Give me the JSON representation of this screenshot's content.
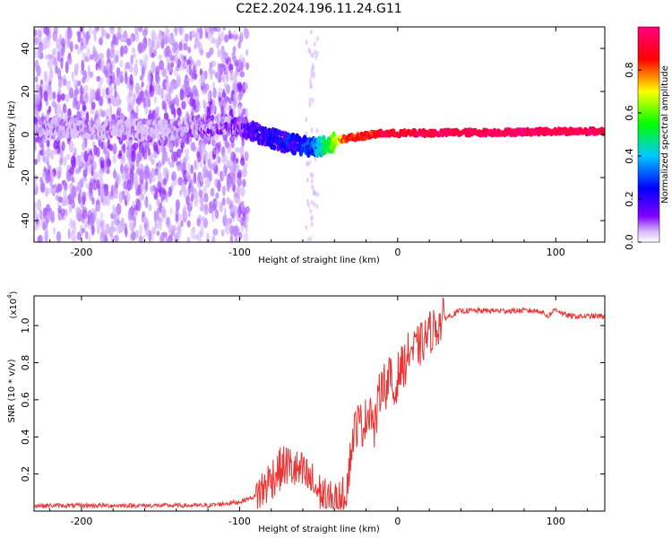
{
  "page": {
    "title": "C2E2.2024.196.11.24.G11"
  },
  "chart_data": [
    {
      "type": "heatmap",
      "title": "C2E2.2024.196.11.24.G11",
      "xlabel": "Height of straight line (km)",
      "ylabel": "Frequency (Hz)",
      "xlim": [
        -230,
        131
      ],
      "ylim": [
        -50,
        50
      ],
      "xticks": [
        -200,
        -100,
        0,
        100
      ],
      "yticks": [
        -40,
        -20,
        0,
        20,
        40
      ],
      "xtick_labels": [
        "-200",
        "-100",
        "0",
        "100"
      ],
      "ytick_labels": [
        "-40",
        "-20",
        "0",
        "20",
        "40"
      ],
      "colorbar": {
        "label": "Normalized spectral amplitude",
        "range": [
          0,
          1
        ],
        "ticks": [
          "0.0",
          "0.2",
          "0.4",
          "0.6",
          "0.8"
        ],
        "colors": [
          "#ffffff",
          "#8000ff",
          "#0000ff",
          "#00ffff",
          "#00ff00",
          "#ffff00",
          "#ff0000",
          "#ff0080"
        ]
      },
      "ridge": {
        "x": [
          -230,
          -200,
          -150,
          -110,
          -90,
          -70,
          -55,
          -45,
          -35,
          -25,
          -10,
          0,
          30,
          60,
          80,
          100,
          131
        ],
        "freq": [
          4,
          3,
          2,
          5,
          1,
          -4,
          -6,
          -5,
          -2,
          -1,
          0.5,
          0.5,
          0.8,
          1,
          1.2,
          1.5,
          1.5
        ],
        "amplitude": [
          0.05,
          0.05,
          0.05,
          0.1,
          0.2,
          0.25,
          0.3,
          0.5,
          0.8,
          0.85,
          0.9,
          0.9,
          0.95,
          0.95,
          0.98,
          0.95,
          0.95
        ]
      }
    },
    {
      "type": "line",
      "xlabel": "Height of straight line (km)",
      "ylabel": "SNR (10 * v/v)",
      "y_multiplier": "(x10",
      "y_multiplier_exp": "4",
      "xlim": [
        -230,
        131
      ],
      "ylim": [
        0,
        1.16
      ],
      "xticks": [
        -200,
        -100,
        0,
        100
      ],
      "yticks": [
        0.2,
        0.4,
        0.6,
        0.8,
        1.0
      ],
      "xtick_labels": [
        "-200",
        "-100",
        "0",
        "100"
      ],
      "ytick_labels": [
        "0.2",
        "0.4",
        "0.6",
        "0.8",
        "1.0"
      ],
      "series": [
        {
          "color": "#ee3333",
          "x": [
            -230,
            -200,
            -150,
            -120,
            -100,
            -90,
            -85,
            -80,
            -75,
            -70,
            -65,
            -60,
            -55,
            -50,
            -45,
            -40,
            -35,
            -32,
            -30,
            -28,
            -25,
            -22,
            -20,
            -17,
            -15,
            -12,
            -10,
            -7,
            -5,
            -2,
            0,
            3,
            5,
            8,
            10,
            15,
            20,
            25,
            30,
            35,
            40,
            50,
            60,
            70,
            80,
            90,
            95,
            100,
            105,
            110,
            120,
            131
          ],
          "y": [
            0.03,
            0.03,
            0.03,
            0.03,
            0.05,
            0.08,
            0.12,
            0.18,
            0.22,
            0.25,
            0.22,
            0.2,
            0.16,
            0.1,
            0.05,
            0.04,
            0.06,
            0.15,
            0.28,
            0.42,
            0.48,
            0.46,
            0.5,
            0.58,
            0.42,
            0.6,
            0.72,
            0.66,
            0.74,
            0.6,
            0.74,
            0.78,
            0.8,
            0.88,
            0.86,
            0.9,
            0.96,
            1.0,
            1.04,
            1.06,
            1.08,
            1.08,
            1.08,
            1.08,
            1.08,
            1.08,
            1.05,
            1.09,
            1.06,
            1.05,
            1.05,
            1.05
          ]
        }
      ]
    }
  ]
}
